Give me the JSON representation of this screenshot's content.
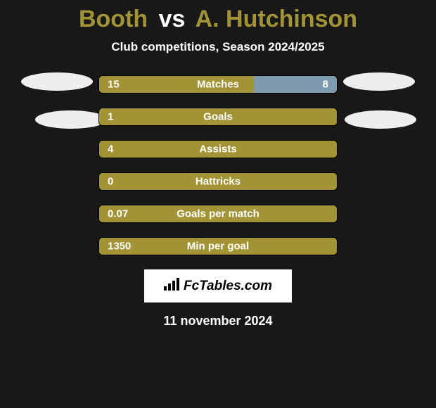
{
  "title": {
    "player1": "Booth",
    "vs": "vs",
    "player2": "A. Hutchinson",
    "player1_color": "#a29436",
    "player2_color": "#a29436",
    "vs_color": "#ffffff"
  },
  "subtitle": "Club competitions, Season 2024/2025",
  "background_color": "#181818",
  "shadow_ellipse_color": "#eeeeee",
  "bars": [
    {
      "label": "Matches",
      "left_value": "15",
      "right_value": "8",
      "left_width_pct": 65,
      "right_width_pct": 35,
      "left_color": "#a29436",
      "right_color": "#7d9bad",
      "bg_color": "#a29436"
    },
    {
      "label": "Goals",
      "left_value": "1",
      "right_value": "",
      "left_width_pct": 100,
      "right_width_pct": 0,
      "left_color": "#a29436",
      "right_color": "#7d9bad",
      "bg_color": "#a29436"
    },
    {
      "label": "Assists",
      "left_value": "4",
      "right_value": "",
      "left_width_pct": 100,
      "right_width_pct": 0,
      "left_color": "#a29436",
      "right_color": "#7d9bad",
      "bg_color": "#a29436"
    },
    {
      "label": "Hattricks",
      "left_value": "0",
      "right_value": "",
      "left_width_pct": 100,
      "right_width_pct": 0,
      "left_color": "#a29436",
      "right_color": "#7d9bad",
      "bg_color": "#a29436"
    },
    {
      "label": "Goals per match",
      "left_value": "0.07",
      "right_value": "",
      "left_width_pct": 100,
      "right_width_pct": 0,
      "left_color": "#a29436",
      "right_color": "#7d9bad",
      "bg_color": "#a29436"
    },
    {
      "label": "Min per goal",
      "left_value": "1350",
      "right_value": "",
      "left_width_pct": 100,
      "right_width_pct": 0,
      "left_color": "#a29436",
      "right_color": "#7d9bad",
      "bg_color": "#a29436"
    }
  ],
  "logo_text": "FcTables.com",
  "footer_date": "11 november 2024",
  "bar_outline_color": "#000000"
}
